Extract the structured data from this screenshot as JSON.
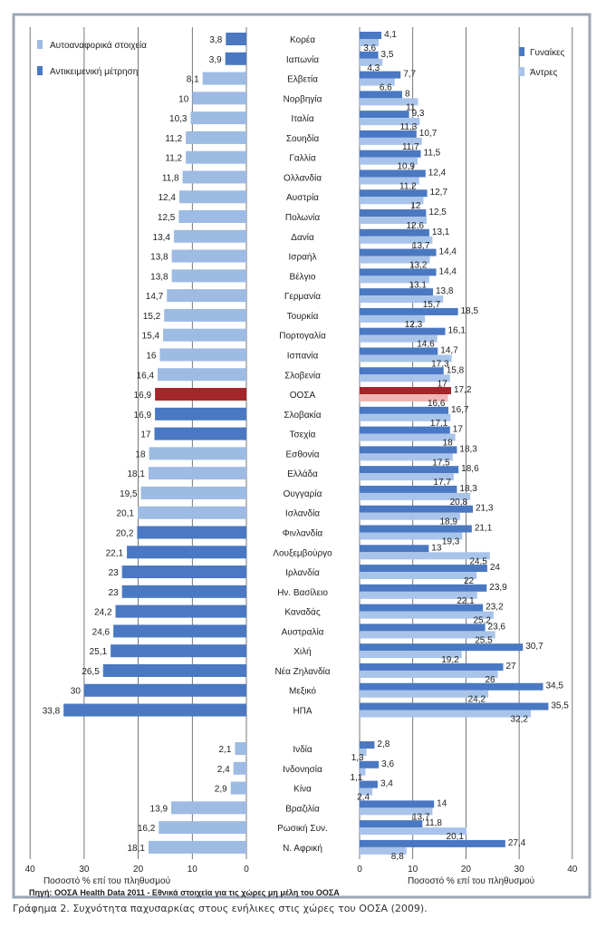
{
  "caption": "Γράφημα 2. Συχνότητα παχυσαρκίας στους ενήλικες στις χώρες του ΟΟΣΑ (2009).",
  "chart_data": {
    "type": "bar",
    "source": "Πηγή: ΟΟΣΑ Health Data 2011 - Εθνικά στοιχεία για τις χώρες μη μέλη του ΟΟΣΑ",
    "left_panel": {
      "legend": [
        "Αυτοαναφορικά στοιχεία",
        "Αντικειμενική μέτρηση"
      ],
      "xlabel": "Ποσοστό % επί του πληθυσμού",
      "xlim": [
        40,
        0
      ],
      "ticks": [
        "40",
        "30",
        "20",
        "10",
        "0"
      ]
    },
    "right_panel": {
      "legend": [
        "Γυναίκες",
        "Άντρες"
      ],
      "xlabel": "Ποσοστό % επί του πληθυσμού",
      "xlim": [
        0,
        40
      ],
      "ticks": [
        "0",
        "10",
        "20",
        "30",
        "40"
      ]
    },
    "categories": [
      "Κορέα",
      "Ιαπωνία",
      "Ελβετία",
      "Νορβηγία",
      "Ιταλία",
      "Σουηδία",
      "Γαλλία",
      "Ολλανδία",
      "Αυστρία",
      "Πολωνία",
      "Δανία",
      "Ισραήλ",
      "Βέλγιο",
      "Γερμανία",
      "Τουρκία",
      "Πορτογαλία",
      "Ισπανία",
      "Σλοβενία",
      "ΟΟΣΑ",
      "Σλοβακία",
      "Τσεχία",
      "Εσθονία",
      "Ελλάδα",
      "Ουγγαρία",
      "Ισλανδία",
      "Φινλανδία",
      "Λουξεμβούργο",
      "Ιρλανδία",
      "Ην. Βασίλειο",
      "Καναδάς",
      "Αυστραλία",
      "Χιλή",
      "Νέα Ζηλανδία",
      "Μεξικό",
      "ΗΠΑ",
      "Ινδία",
      "Ινδονησία",
      "Κίνα",
      "Βραζιλία",
      "Ρωσική Συν.",
      "Ν. Αφρική"
    ],
    "total": [
      "3,8",
      "3,9",
      "8,1",
      "10",
      "10,3",
      "11,2",
      "11,2",
      "11,8",
      "12,4",
      "12,5",
      "13,4",
      "13,8",
      "13,8",
      "14,7",
      "15,2",
      "15,4",
      "16",
      "16,4",
      "16,9",
      "16,9",
      "17",
      "18",
      "18,1",
      "19,5",
      "20,1",
      "20,2",
      "22,1",
      "23",
      "23",
      "24,2",
      "24,6",
      "25,1",
      "26,5",
      "30",
      "33,8",
      "2,1",
      "2,4",
      "2,9",
      "13,9",
      "16,2",
      "18,1"
    ],
    "total_method": [
      "measured",
      "measured",
      "self",
      "self",
      "self",
      "self",
      "self",
      "self",
      "self",
      "self",
      "self",
      "self",
      "self",
      "self",
      "self",
      "self",
      "self",
      "self",
      "oecd",
      "measured",
      "measured",
      "self",
      "self",
      "self",
      "self",
      "measured",
      "measured",
      "measured",
      "measured",
      "measured",
      "measured",
      "measured",
      "measured",
      "measured",
      "measured",
      "self",
      "self",
      "self",
      "self",
      "self",
      "self"
    ],
    "women": [
      "4,1",
      "3,5",
      "7,7",
      "8",
      "9,3",
      "10,7",
      "11,5",
      "12,4",
      "12,7",
      "12,5",
      "13,1",
      "14,4",
      "14,4",
      "13,8",
      "18,5",
      "16,1",
      "14,7",
      "15,8",
      "17,2",
      "16,7",
      "17",
      "18,3",
      "18,6",
      "18,3",
      "21,3",
      "21,1",
      "13",
      "24",
      "23,9",
      "23,2",
      "23,6",
      "30,7",
      "27",
      "34,5",
      "35,5",
      "2,8",
      "3,6",
      "3,4",
      "14",
      "11,8",
      "27,4"
    ],
    "men": [
      "3,6",
      "4,3",
      "6,6",
      "11",
      "11,3",
      "11,7",
      "10,9",
      "11,2",
      "12",
      "12,6",
      "13,7",
      "13,2",
      "13,1",
      "15,7",
      "12,3",
      "14,6",
      "17,3",
      "17",
      "16,6",
      "17,1",
      "18",
      "17,5",
      "17,7",
      "20,8",
      "18,9",
      "19,3",
      "24,5",
      "22",
      "22,1",
      "25,2",
      "25,5",
      "19,2",
      "26",
      "24,2",
      "32,2",
      "1,3",
      "1,1",
      "2,4",
      "13,7",
      "20,1",
      "8,8"
    ],
    "colors": {
      "self": "#9dbbe3",
      "measured": "#4a78c2",
      "oecd_total": "#a3262a",
      "women": "#4a78c2",
      "men": "#a9c4ea",
      "oecd_women": "#a3262a",
      "oecd_men": "#f0b6b6",
      "frame": "#9aa7b4"
    }
  }
}
